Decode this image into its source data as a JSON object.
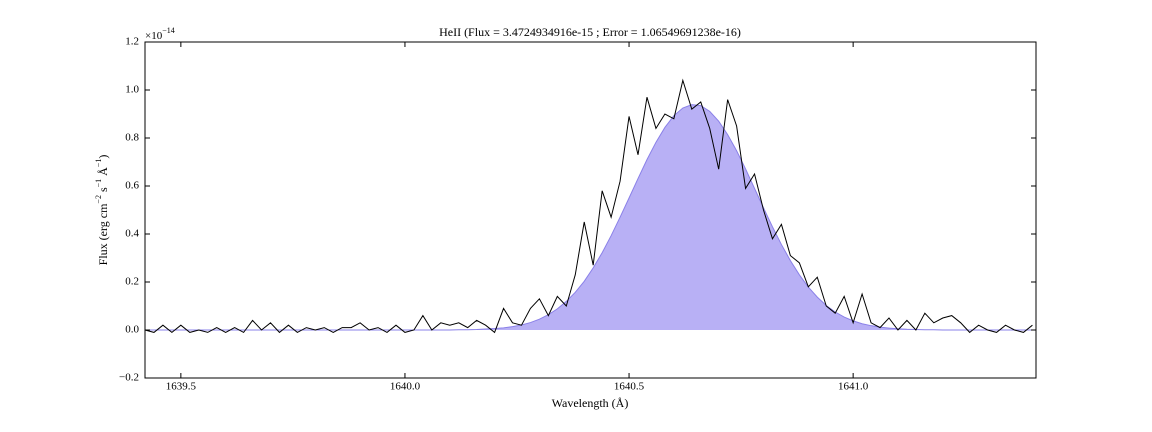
{
  "chart_data": {
    "type": "line",
    "title": "HeII (Flux = 3.4724934916e-15 ; Error = 1.06549691238e-16)",
    "xlabel": "Wavelength (Å)",
    "ylabel": [
      {
        "text": "Flux (erg cm"
      },
      {
        "sup": "−2"
      },
      {
        "text": " s"
      },
      {
        "sup": "−1"
      },
      {
        "text": " Å"
      },
      {
        "sup": "−1"
      },
      {
        "text": ")"
      }
    ],
    "y_offset": [
      {
        "text": "×10"
      },
      {
        "sup": "−14"
      }
    ],
    "xlim": [
      1639.42,
      1641.408
    ],
    "ylim": [
      -0.2,
      1.2
    ],
    "xticks": [
      1639.5,
      {
        "value": 1640.0,
        "label": "1640.0"
      },
      1640.5,
      {
        "value": 1641.0,
        "label": "1641.0"
      }
    ],
    "yticks": [
      {
        "value": -0.2,
        "label": "−0.2"
      },
      {
        "value": 0.0,
        "label": "0.0"
      },
      0.2,
      0.4,
      0.6,
      0.8,
      {
        "value": 1.0,
        "label": "1.0"
      },
      {
        "value": 1.2,
        "label": "1.2"
      }
    ],
    "grid": false,
    "x": [
      1639.42,
      1639.44,
      1639.46,
      1639.48,
      1639.5,
      1639.52,
      1639.54,
      1639.56,
      1639.58,
      1639.6,
      1639.62,
      1639.64,
      1639.66,
      1639.68,
      1639.7,
      1639.72,
      1639.74,
      1639.76,
      1639.78,
      1639.8,
      1639.82,
      1639.84,
      1639.86,
      1639.88,
      1639.9,
      1639.92,
      1639.94,
      1639.96,
      1639.98,
      1640.0,
      1640.02,
      1640.04,
      1640.06,
      1640.08,
      1640.1,
      1640.12,
      1640.14,
      1640.16,
      1640.18,
      1640.2,
      1640.22,
      1640.24,
      1640.26,
      1640.28,
      1640.3,
      1640.32,
      1640.34,
      1640.36,
      1640.38,
      1640.4,
      1640.42,
      1640.44,
      1640.46,
      1640.48,
      1640.5,
      1640.52,
      1640.54,
      1640.56,
      1640.58,
      1640.6,
      1640.62,
      1640.64,
      1640.66,
      1640.68,
      1640.7,
      1640.72,
      1640.74,
      1640.76,
      1640.78,
      1640.8,
      1640.82,
      1640.84,
      1640.86,
      1640.88,
      1640.9,
      1640.92,
      1640.94,
      1640.96,
      1640.98,
      1641.0,
      1641.02,
      1641.04,
      1641.06,
      1641.08,
      1641.1,
      1641.12,
      1641.14,
      1641.16,
      1641.18,
      1641.2,
      1641.22,
      1641.24,
      1641.26,
      1641.28,
      1641.3,
      1641.32,
      1641.34,
      1641.36,
      1641.38,
      1641.4
    ],
    "series": [
      {
        "kind": "area",
        "color": "#b8b0f5",
        "edge_color": "#8a80e8",
        "values": [
          0,
          0,
          0,
          0,
          0,
          0,
          0,
          0,
          0,
          0,
          0,
          0,
          0,
          0,
          0,
          0,
          0,
          0,
          0,
          0,
          0,
          0,
          0,
          0,
          0,
          0,
          0,
          0,
          0,
          0,
          0,
          0,
          0,
          0,
          0,
          0.001,
          0.001,
          0.002,
          0.004,
          0.006,
          0.009,
          0.014,
          0.021,
          0.031,
          0.045,
          0.064,
          0.088,
          0.119,
          0.157,
          0.203,
          0.259,
          0.322,
          0.393,
          0.47,
          0.55,
          0.631,
          0.71,
          0.782,
          0.844,
          0.893,
          0.925,
          0.939,
          0.935,
          0.911,
          0.87,
          0.814,
          0.747,
          0.671,
          0.59,
          0.509,
          0.43,
          0.356,
          0.289,
          0.23,
          0.179,
          0.137,
          0.102,
          0.075,
          0.054,
          0.038,
          0.026,
          0.018,
          0.012,
          0.008,
          0.005,
          0.003,
          0.002,
          0.001,
          0.001,
          0,
          0,
          0,
          0,
          0,
          0,
          0,
          0,
          0,
          0,
          0
        ]
      },
      {
        "kind": "line",
        "color": "#000000",
        "values": [
          0,
          -0.01,
          0.02,
          -0.01,
          0.02,
          -0.01,
          0,
          -0.01,
          0.01,
          -0.01,
          0.01,
          -0.01,
          0.04,
          0,
          0.03,
          -0.01,
          0.02,
          -0.01,
          0.01,
          0,
          0.01,
          -0.01,
          0.01,
          0.01,
          0.03,
          0,
          0.01,
          -0.01,
          0.02,
          -0.01,
          0,
          0.06,
          0,
          0.03,
          0.02,
          0.03,
          0.01,
          0.04,
          0.02,
          -0.01,
          0.09,
          0.03,
          0.02,
          0.09,
          0.13,
          0.06,
          0.14,
          0.1,
          0.23,
          0.45,
          0.27,
          0.58,
          0.47,
          0.62,
          0.89,
          0.73,
          0.97,
          0.84,
          0.9,
          0.88,
          1.04,
          0.92,
          0.95,
          0.84,
          0.67,
          0.96,
          0.85,
          0.59,
          0.65,
          0.5,
          0.38,
          0.44,
          0.31,
          0.28,
          0.18,
          0.22,
          0.1,
          0.07,
          0.14,
          0.03,
          0.15,
          0.03,
          0.01,
          0.05,
          0,
          0.04,
          0,
          0.07,
          0.03,
          0.05,
          0.06,
          0.03,
          -0.01,
          0.02,
          0,
          -0.01,
          0.02,
          0,
          -0.01,
          0.02
        ]
      }
    ]
  }
}
